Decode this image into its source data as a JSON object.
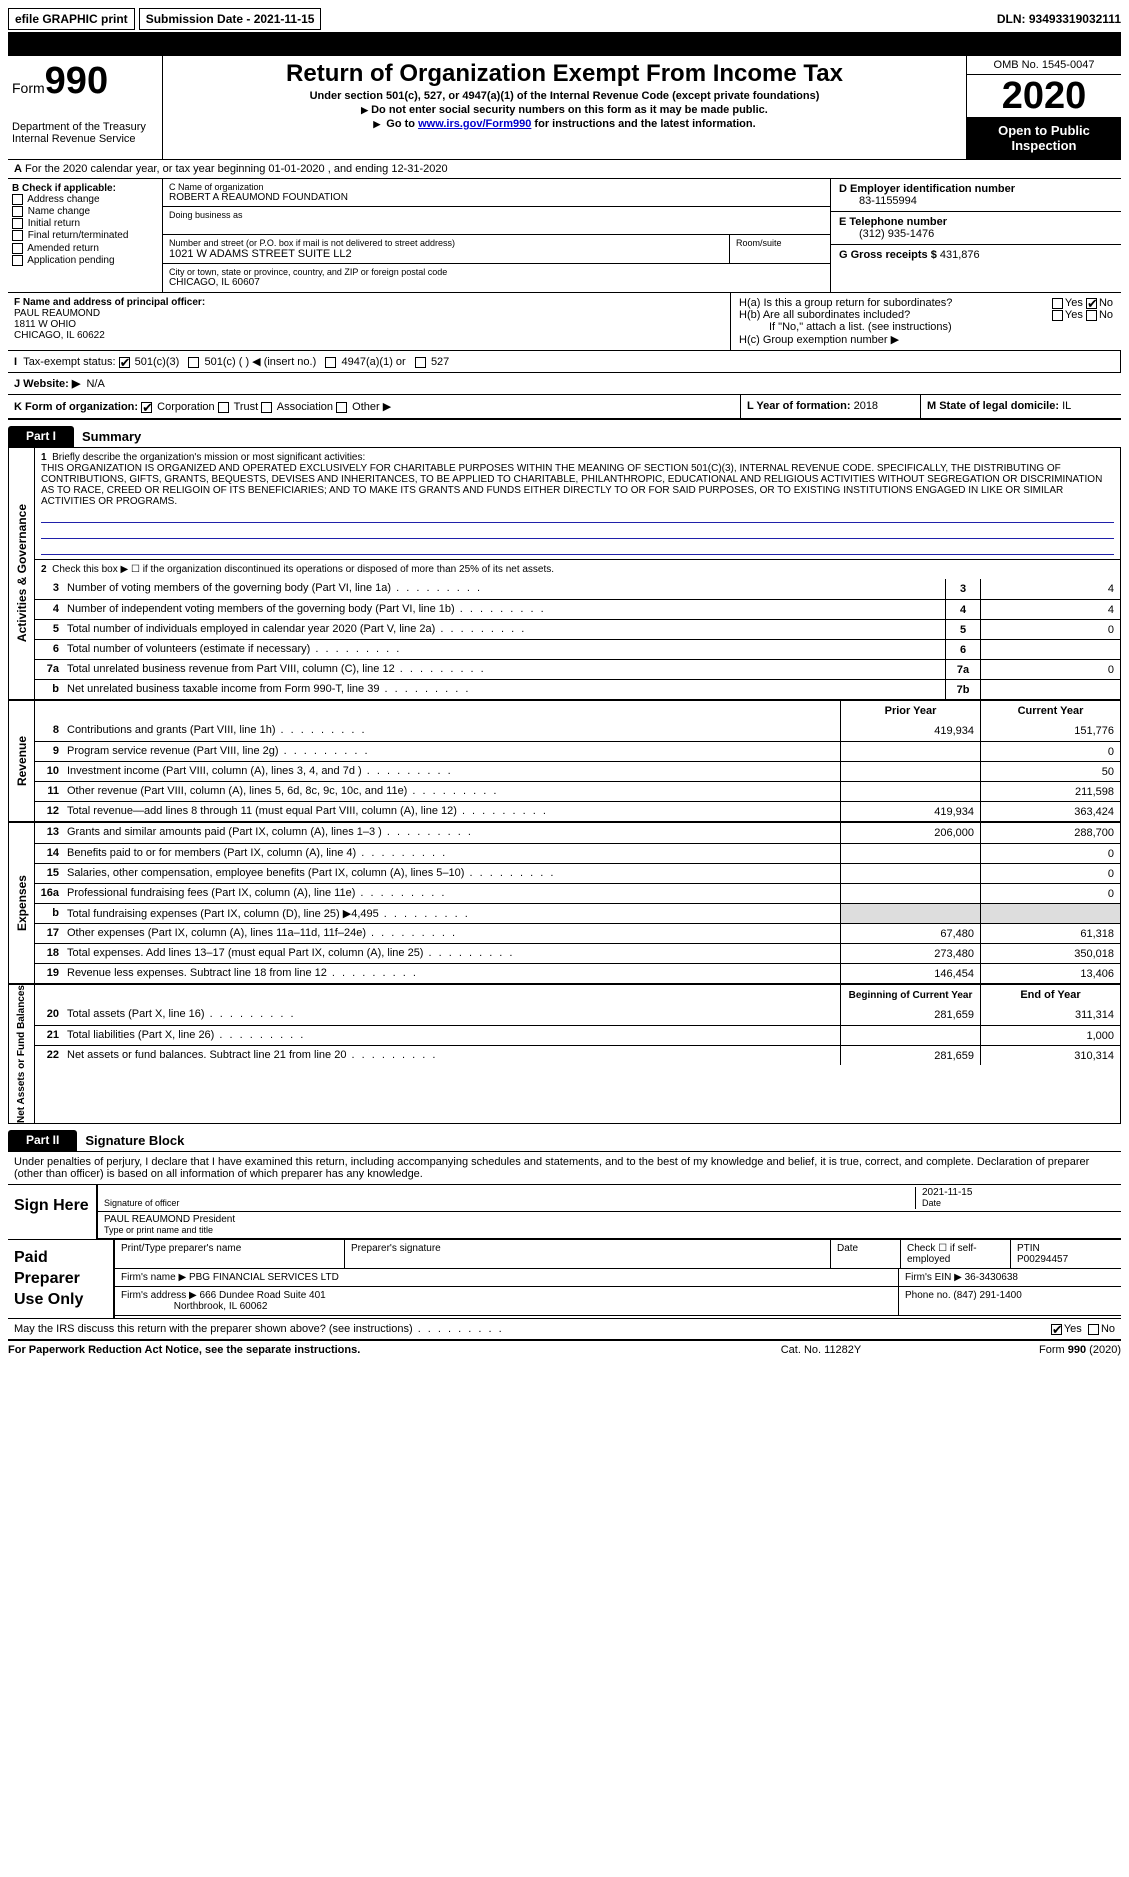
{
  "top": {
    "efile": "efile GRAPHIC print",
    "submission": "Submission Date - 2021-11-15",
    "dln": "DLN: 93493319032111"
  },
  "header": {
    "form_prefix": "Form",
    "form_num": "990",
    "title": "Return of Organization Exempt From Income Tax",
    "subtitle": "Under section 501(c), 527, or 4947(a)(1) of the Internal Revenue Code (except private foundations)",
    "note1": "Do not enter social security numbers on this form as it may be made public.",
    "note2_pre": "Go to ",
    "note2_link": "www.irs.gov/Form990",
    "note2_post": " for instructions and the latest information.",
    "dept": "Department of the Treasury\nInternal Revenue Service",
    "omb": "OMB No. 1545-0047",
    "year": "2020",
    "open": "Open to Public Inspection"
  },
  "row_a": "For the 2020 calendar year, or tax year beginning 01-01-2020   , and ending 12-31-2020",
  "box_b": {
    "label": "B Check if applicable:",
    "opts": [
      "Address change",
      "Name change",
      "Initial return",
      "Final return/terminated",
      "Amended return",
      "Application pending"
    ]
  },
  "box_c": {
    "name_label": "C Name of organization",
    "name": "ROBERT A REAUMOND FOUNDATION",
    "dba_label": "Doing business as",
    "addr_label": "Number and street (or P.O. box if mail is not delivered to street address)",
    "addr": "1021 W ADAMS STREET SUITE LL2",
    "room_label": "Room/suite",
    "city_label": "City or town, state or province, country, and ZIP or foreign postal code",
    "city": "CHICAGO, IL  60607"
  },
  "box_d": {
    "label": "D Employer identification number",
    "val": "83-1155994"
  },
  "box_e": {
    "label": "E Telephone number",
    "val": "(312) 935-1476"
  },
  "box_g": {
    "label": "G Gross receipts $",
    "val": "431,876"
  },
  "box_f": {
    "label": "F  Name and address of principal officer:",
    "name": "PAUL REAUMOND",
    "addr1": "1811 W OHIO",
    "addr2": "CHICAGO, IL  60622"
  },
  "box_h": {
    "ha": "H(a)  Is this a group return for subordinates?",
    "hb": "H(b)  Are all subordinates included?",
    "hb_note": "If \"No,\" attach a list. (see instructions)",
    "hc": "H(c)  Group exemption number ▶",
    "yes": "Yes",
    "no": "No"
  },
  "box_i": {
    "label": "Tax-exempt status:",
    "o1": "501(c)(3)",
    "o2": "501(c) (  ) ◀ (insert no.)",
    "o3": "4947(a)(1) or",
    "o4": "527"
  },
  "box_j": {
    "label": "J Website: ▶",
    "val": "N/A"
  },
  "box_k": {
    "label": "K Form of organization:",
    "o1": "Corporation",
    "o2": "Trust",
    "o3": "Association",
    "o4": "Other ▶"
  },
  "box_l": {
    "label": "L Year of formation:",
    "val": "2018"
  },
  "box_m": {
    "label": "M State of legal domicile:",
    "val": "IL"
  },
  "part1": {
    "tab": "Part I",
    "title": "Summary",
    "line1_label": "Briefly describe the organization's mission or most significant activities:",
    "mission": "THIS ORGANIZATION IS ORGANIZED AND OPERATED EXCLUSIVELY FOR CHARITABLE PURPOSES WITHIN THE MEANING OF SECTION 501(C)(3), INTERNAL REVENUE CODE. SPECIFICALLY, THE DISTRIBUTING OF CONTRIBUTIONS, GIFTS, GRANTS, BEQUESTS, DEVISES AND INHERITANCES, TO BE APPLIED TO CHARITABLE, PHILANTHROPIC, EDUCATIONAL AND RELIGIOUS ACTIVITIES WITHOUT SEGREGATION OR DISCRIMINATION AS TO RACE, CREED OR RELIGOIN OF ITS BENEFICIARIES; AND TO MAKE ITS GRANTS AND FUNDS EITHER DIRECTLY TO OR FOR SAID PURPOSES, OR TO EXISTING INSTITUTIONS ENGAGED IN LIKE OR SIMILAR ACTIVITIES OR PROGRAMS.",
    "line2": "Check this box ▶ ☐  if the organization discontinued its operations or disposed of more than 25% of its net assets.",
    "sec_ag": "Activities & Governance",
    "sec_rev": "Revenue",
    "sec_exp": "Expenses",
    "sec_net": "Net Assets or Fund Balances",
    "rows": [
      {
        "n": "3",
        "d": "Number of voting members of the governing body (Part VI, line 1a)",
        "b": "3",
        "v": "4"
      },
      {
        "n": "4",
        "d": "Number of independent voting members of the governing body (Part VI, line 1b)",
        "b": "4",
        "v": "4"
      },
      {
        "n": "5",
        "d": "Total number of individuals employed in calendar year 2020 (Part V, line 2a)",
        "b": "5",
        "v": "0"
      },
      {
        "n": "6",
        "d": "Total number of volunteers (estimate if necessary)",
        "b": "6",
        "v": ""
      },
      {
        "n": "7a",
        "d": "Total unrelated business revenue from Part VIII, column (C), line 12",
        "b": "7a",
        "v": "0"
      },
      {
        "n": "b",
        "d": "Net unrelated business taxable income from Form 990-T, line 39",
        "b": "7b",
        "v": ""
      }
    ],
    "hdr_prior": "Prior Year",
    "hdr_curr": "Current Year",
    "rev_rows": [
      {
        "n": "8",
        "d": "Contributions and grants (Part VIII, line 1h)",
        "p": "419,934",
        "c": "151,776"
      },
      {
        "n": "9",
        "d": "Program service revenue (Part VIII, line 2g)",
        "p": "",
        "c": "0"
      },
      {
        "n": "10",
        "d": "Investment income (Part VIII, column (A), lines 3, 4, and 7d )",
        "p": "",
        "c": "50"
      },
      {
        "n": "11",
        "d": "Other revenue (Part VIII, column (A), lines 5, 6d, 8c, 9c, 10c, and 11e)",
        "p": "",
        "c": "211,598"
      },
      {
        "n": "12",
        "d": "Total revenue—add lines 8 through 11 (must equal Part VIII, column (A), line 12)",
        "p": "419,934",
        "c": "363,424"
      }
    ],
    "exp_rows": [
      {
        "n": "13",
        "d": "Grants and similar amounts paid (Part IX, column (A), lines 1–3 )",
        "p": "206,000",
        "c": "288,700"
      },
      {
        "n": "14",
        "d": "Benefits paid to or for members (Part IX, column (A), line 4)",
        "p": "",
        "c": "0"
      },
      {
        "n": "15",
        "d": "Salaries, other compensation, employee benefits (Part IX, column (A), lines 5–10)",
        "p": "",
        "c": "0"
      },
      {
        "n": "16a",
        "d": "Professional fundraising fees (Part IX, column (A), line 11e)",
        "p": "",
        "c": "0"
      },
      {
        "n": "b",
        "d": "Total fundraising expenses (Part IX, column (D), line 25) ▶4,495",
        "p": "shade",
        "c": "shade"
      },
      {
        "n": "17",
        "d": "Other expenses (Part IX, column (A), lines 11a–11d, 11f–24e)",
        "p": "67,480",
        "c": "61,318"
      },
      {
        "n": "18",
        "d": "Total expenses. Add lines 13–17 (must equal Part IX, column (A), line 25)",
        "p": "273,480",
        "c": "350,018"
      },
      {
        "n": "19",
        "d": "Revenue less expenses. Subtract line 18 from line 12",
        "p": "146,454",
        "c": "13,406"
      }
    ],
    "hdr_beg": "Beginning of Current Year",
    "hdr_end": "End of Year",
    "net_rows": [
      {
        "n": "20",
        "d": "Total assets (Part X, line 16)",
        "p": "281,659",
        "c": "311,314"
      },
      {
        "n": "21",
        "d": "Total liabilities (Part X, line 26)",
        "p": "",
        "c": "1,000"
      },
      {
        "n": "22",
        "d": "Net assets or fund balances. Subtract line 21 from line 20",
        "p": "281,659",
        "c": "310,314"
      }
    ]
  },
  "part2": {
    "tab": "Part II",
    "title": "Signature Block",
    "decl": "Under penalties of perjury, I declare that I have examined this return, including accompanying schedules and statements, and to the best of my knowledge and belief, it is true, correct, and complete. Declaration of preparer (other than officer) is based on all information of which preparer has any knowledge.",
    "sign_here": "Sign Here",
    "sig_officer": "Signature of officer",
    "sig_date": "2021-11-15",
    "date_label": "Date",
    "officer_name": "PAUL REAUMOND  President",
    "type_label": "Type or print name and title",
    "paid": "Paid Preparer Use Only",
    "prep_name_label": "Print/Type preparer's name",
    "prep_sig_label": "Preparer's signature",
    "prep_date_label": "Date",
    "prep_self": "Check ☐ if self-employed",
    "ptin_label": "PTIN",
    "ptin": "P00294457",
    "firm_name_label": "Firm's name    ▶",
    "firm_name": "PBG FINANCIAL SERVICES LTD",
    "firm_ein_label": "Firm's EIN ▶",
    "firm_ein": "36-3430638",
    "firm_addr_label": "Firm's address ▶",
    "firm_addr1": "666 Dundee Road Suite 401",
    "firm_addr2": "Northbrook, IL  60062",
    "phone_label": "Phone no.",
    "phone": "(847) 291-1400",
    "discuss": "May the IRS discuss this return with the preparer shown above? (see instructions)",
    "yes": "Yes",
    "no": "No"
  },
  "footer": {
    "l": "For Paperwork Reduction Act Notice, see the separate instructions.",
    "m": "Cat. No. 11282Y",
    "r": "Form 990 (2020)"
  }
}
